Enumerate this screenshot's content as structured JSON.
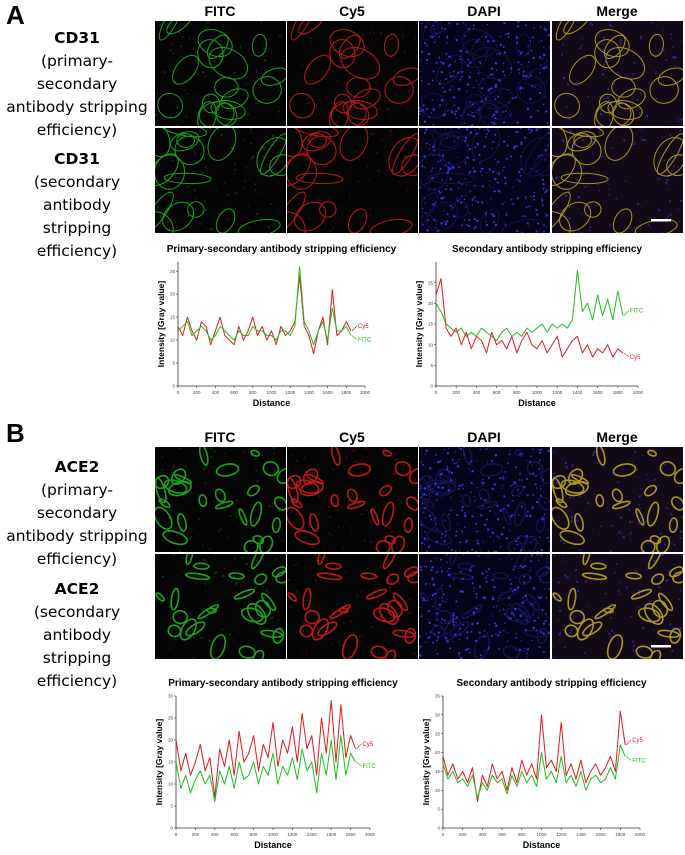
{
  "figure": {
    "panel_a": {
      "letter": "A",
      "columns": [
        "FITC",
        "Cy5",
        "DAPI",
        "Merge"
      ],
      "rows": [
        {
          "title": "CD31",
          "lines": [
            "(primary-secondary",
            "antibody stripping",
            "efficiency)"
          ]
        },
        {
          "title": "CD31",
          "lines": [
            "(secondary antibody",
            "stripping efficiency)"
          ]
        }
      ]
    },
    "panel_b": {
      "letter": "B",
      "columns": [
        "FITC",
        "Cy5",
        "DAPI",
        "Merge"
      ],
      "rows": [
        {
          "title": "ACE2",
          "lines": [
            "(primary-secondary",
            "antibody stripping",
            "efficiency)"
          ]
        },
        {
          "title": "ACE2",
          "lines": [
            "(secondary antibody",
            "stripping efficiency)"
          ]
        }
      ]
    },
    "colors": {
      "fitc": "#1ec01e",
      "cy5": "#e41a1a",
      "dapi": "#3a3af0"
    }
  },
  "chart_data": [
    {
      "id": "A-left",
      "type": "line",
      "title": "Primary-secondary antibody stripping efficiency",
      "xlabel": "Distance",
      "ylabel": "Intensity [Gray value]",
      "xlim": [
        0,
        2000
      ],
      "ylim": [
        0,
        27
      ],
      "xticks": [
        0,
        200,
        400,
        600,
        800,
        1000,
        1200,
        1400,
        1600,
        1800,
        2000
      ],
      "yticks": [
        0,
        5,
        10,
        15,
        20,
        25
      ],
      "series": [
        {
          "name": "Cy5",
          "color": "#e41a1a",
          "x": [
            0,
            50,
            100,
            150,
            200,
            250,
            300,
            350,
            400,
            450,
            500,
            550,
            600,
            650,
            700,
            750,
            800,
            850,
            900,
            950,
            1000,
            1050,
            1100,
            1150,
            1200,
            1250,
            1300,
            1350,
            1400,
            1450,
            1500,
            1550,
            1600,
            1650,
            1700,
            1750,
            1800,
            1850
          ],
          "y": [
            13,
            11,
            15,
            12,
            10,
            14,
            13,
            9,
            12,
            15,
            11,
            10,
            9,
            13,
            10,
            12,
            15,
            11,
            13,
            10,
            12,
            9,
            13,
            11,
            12,
            14,
            24,
            13,
            11,
            7,
            12,
            15,
            9,
            21,
            11,
            12,
            14,
            12
          ]
        },
        {
          "name": "FITC",
          "color": "#1ec01e",
          "x": [
            0,
            50,
            100,
            150,
            200,
            250,
            300,
            350,
            400,
            450,
            500,
            550,
            600,
            650,
            700,
            750,
            800,
            850,
            900,
            950,
            1000,
            1050,
            1100,
            1150,
            1200,
            1250,
            1300,
            1350,
            1400,
            1450,
            1500,
            1550,
            1600,
            1650,
            1700,
            1750,
            1800,
            1850
          ],
          "y": [
            12,
            13,
            14,
            11,
            12,
            13,
            12,
            10,
            11,
            13,
            12,
            11,
            10,
            12,
            11,
            11,
            13,
            12,
            12,
            11,
            11,
            10,
            12,
            12,
            11,
            13,
            26,
            14,
            12,
            9,
            12,
            14,
            10,
            17,
            12,
            12,
            13,
            11
          ]
        }
      ]
    },
    {
      "id": "A-right",
      "type": "line",
      "title": "Secondary antibody stripping efficiency",
      "xlabel": "Distance",
      "ylabel": "Intensity [Gray value]",
      "xlim": [
        0,
        2000
      ],
      "ylim": [
        0,
        30
      ],
      "xticks": [
        0,
        200,
        400,
        600,
        800,
        1000,
        1200,
        1400,
        1600,
        1800,
        2000
      ],
      "yticks": [
        0,
        5,
        10,
        15,
        20,
        25
      ],
      "series": [
        {
          "name": "FITC",
          "color": "#1ec01e",
          "x": [
            0,
            50,
            100,
            150,
            200,
            250,
            300,
            350,
            400,
            450,
            500,
            550,
            600,
            650,
            700,
            750,
            800,
            850,
            900,
            950,
            1000,
            1050,
            1100,
            1150,
            1200,
            1250,
            1300,
            1350,
            1400,
            1450,
            1500,
            1550,
            1600,
            1650,
            1700,
            1750,
            1800,
            1850
          ],
          "y": [
            20,
            18,
            15,
            14,
            13,
            14,
            12,
            13,
            12,
            14,
            13,
            12,
            11,
            13,
            14,
            12,
            13,
            12,
            14,
            13,
            14,
            15,
            13,
            15,
            14,
            15,
            14,
            16,
            28,
            18,
            20,
            16,
            22,
            17,
            21,
            16,
            23,
            17
          ]
        },
        {
          "name": "Cy5",
          "color": "#e41a1a",
          "x": [
            0,
            50,
            100,
            150,
            200,
            250,
            300,
            350,
            400,
            450,
            500,
            550,
            600,
            650,
            700,
            750,
            800,
            850,
            900,
            950,
            1000,
            1050,
            1100,
            1150,
            1200,
            1250,
            1300,
            1350,
            1400,
            1450,
            1500,
            1550,
            1600,
            1650,
            1700,
            1750,
            1800,
            1850
          ],
          "y": [
            22,
            26,
            14,
            12,
            14,
            10,
            13,
            9,
            12,
            11,
            8,
            13,
            10,
            11,
            9,
            12,
            8,
            11,
            13,
            10,
            9,
            11,
            8,
            10,
            12,
            7,
            9,
            11,
            12,
            8,
            10,
            7,
            9,
            8,
            10,
            7,
            9,
            8
          ]
        }
      ]
    },
    {
      "id": "B-left",
      "type": "line",
      "title": "Primary-secondary antibody stripping efficiency",
      "xlabel": "Distance",
      "ylabel": "Intensity [Gray value]",
      "xlim": [
        0,
        2000
      ],
      "ylim": [
        0,
        30
      ],
      "xticks": [
        0,
        200,
        400,
        600,
        800,
        1000,
        1200,
        1400,
        1600,
        1800,
        2000
      ],
      "yticks": [
        0,
        5,
        10,
        15,
        20,
        25,
        30
      ],
      "series": [
        {
          "name": "Cy5",
          "color": "#e41a1a",
          "x": [
            0,
            50,
            100,
            150,
            200,
            250,
            300,
            350,
            400,
            450,
            500,
            550,
            600,
            650,
            700,
            750,
            800,
            850,
            900,
            950,
            1000,
            1050,
            1100,
            1150,
            1200,
            1250,
            1300,
            1350,
            1400,
            1450,
            1500,
            1550,
            1600,
            1650,
            1700,
            1750,
            1800,
            1850
          ],
          "y": [
            20,
            13,
            17,
            12,
            15,
            19,
            13,
            16,
            7,
            18,
            14,
            20,
            12,
            22,
            15,
            17,
            21,
            13,
            19,
            16,
            24,
            14,
            20,
            17,
            23,
            15,
            26,
            18,
            21,
            12,
            25,
            17,
            29,
            15,
            28,
            16,
            21,
            18
          ]
        },
        {
          "name": "FITC",
          "color": "#1ec01e",
          "x": [
            0,
            50,
            100,
            150,
            200,
            250,
            300,
            350,
            400,
            450,
            500,
            550,
            600,
            650,
            700,
            750,
            800,
            850,
            900,
            950,
            1000,
            1050,
            1100,
            1150,
            1200,
            1250,
            1300,
            1350,
            1400,
            1450,
            1500,
            1550,
            1600,
            1650,
            1700,
            1750,
            1800,
            1850
          ],
          "y": [
            15,
            9,
            12,
            8,
            11,
            13,
            10,
            12,
            6,
            13,
            10,
            14,
            9,
            15,
            11,
            12,
            15,
            10,
            14,
            12,
            17,
            10,
            14,
            12,
            16,
            11,
            18,
            13,
            15,
            8,
            17,
            12,
            20,
            11,
            21,
            12,
            17,
            15
          ]
        }
      ]
    },
    {
      "id": "B-right",
      "type": "line",
      "title": "Secondary antibody stripping efficiency",
      "xlabel": "Distance",
      "ylabel": "Intensity [Gray value]",
      "xlim": [
        0,
        2000
      ],
      "ylim": [
        0,
        35
      ],
      "xticks": [
        0,
        200,
        400,
        600,
        800,
        1000,
        1200,
        1400,
        1600,
        1800,
        2000
      ],
      "yticks": [
        0,
        5,
        10,
        15,
        20,
        25,
        30,
        35
      ],
      "series": [
        {
          "name": "Cy5",
          "color": "#e41a1a",
          "x": [
            0,
            50,
            100,
            150,
            200,
            250,
            300,
            350,
            400,
            450,
            500,
            550,
            600,
            650,
            700,
            750,
            800,
            850,
            900,
            950,
            1000,
            1050,
            1100,
            1150,
            1200,
            1250,
            1300,
            1350,
            1400,
            1450,
            1500,
            1550,
            1600,
            1650,
            1700,
            1750,
            1800,
            1850
          ],
          "y": [
            19,
            14,
            17,
            13,
            15,
            12,
            16,
            7,
            14,
            11,
            17,
            13,
            15,
            10,
            16,
            12,
            18,
            14,
            17,
            13,
            30,
            16,
            18,
            15,
            28,
            14,
            17,
            13,
            18,
            12,
            15,
            17,
            14,
            16,
            19,
            15,
            31,
            22
          ]
        },
        {
          "name": "FITC",
          "color": "#1ec01e",
          "x": [
            0,
            50,
            100,
            150,
            200,
            250,
            300,
            350,
            400,
            450,
            500,
            550,
            600,
            650,
            700,
            750,
            800,
            850,
            900,
            950,
            1000,
            1050,
            1100,
            1150,
            1200,
            1250,
            1300,
            1350,
            1400,
            1450,
            1500,
            1550,
            1600,
            1650,
            1700,
            1750,
            1800,
            1850
          ],
          "y": [
            17,
            13,
            15,
            12,
            13,
            11,
            14,
            8,
            12,
            10,
            14,
            12,
            13,
            9,
            14,
            11,
            15,
            12,
            14,
            11,
            20,
            13,
            15,
            12,
            19,
            12,
            14,
            11,
            15,
            10,
            13,
            14,
            12,
            13,
            16,
            13,
            22,
            19
          ]
        }
      ]
    }
  ]
}
